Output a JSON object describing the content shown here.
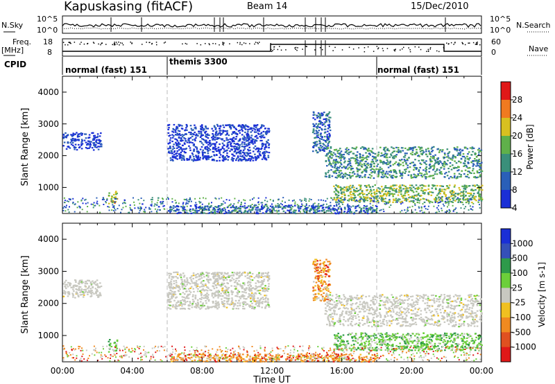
{
  "header": {
    "station": "Kapuskasing (fitACF)",
    "beam": "Beam 14",
    "date": "15/Dec/2010"
  },
  "strip": {
    "nsky_label": "N.Sky",
    "nsky_ticks": [
      "10^5",
      "10^0"
    ],
    "nsearch_label": "N.Search",
    "nsearch_ticks": [
      "10^5",
      "10^0"
    ],
    "freq_label": "Freq.",
    "freq_unit": "[MHz]",
    "freq_ticks": [
      "18",
      "8"
    ],
    "nave_label": "Nave",
    "nave_ticks": [
      "60",
      "0"
    ],
    "cpid_label": "CPID",
    "cpid_modes": [
      {
        "name": "normal (fast) 151",
        "start_h": 0,
        "end_h": 6
      },
      {
        "name": "themis 3300",
        "start_h": 6,
        "end_h": 18
      },
      {
        "name": "normal (fast) 151",
        "start_h": 18,
        "end_h": 24
      }
    ]
  },
  "colors": {
    "pw4": "#1a2fd6",
    "pw8": "#2a5fb8",
    "pw12": "#3a8f7a",
    "pw16": "#5fb04a",
    "pw20": "#d8c020",
    "pw24": "#f07a20",
    "pw28": "#e01818",
    "v1000p": "#1a2fd6",
    "v500p": "#3550b8",
    "v100p": "#2e9a4a",
    "v25p": "#6ccf3a",
    "vgs": "#c8c8c0",
    "vm25": "#f0c020",
    "vm100": "#f08a20",
    "vm500": "#e05020",
    "vm1000": "#e01818"
  },
  "chart_data": [
    {
      "type": "heatmap",
      "title": "",
      "ylabel": "Slant Range [km]",
      "xlabel": "",
      "xlim": [
        0,
        24
      ],
      "ylim": [
        180,
        4500
      ],
      "yticks": [
        "1000",
        "2000",
        "3000",
        "4000"
      ],
      "xticks": [
        "00:00",
        "04:00",
        "08:00",
        "12:00",
        "16:00",
        "20:00",
        "00:00"
      ],
      "colorbar": {
        "label": "Power [dB]",
        "ticks": [
          "28",
          "24",
          "20",
          "16",
          "12",
          "8",
          "4"
        ],
        "colors": [
          "#e01818",
          "#f07a20",
          "#d8c020",
          "#5fb04a",
          "#3a8f7a",
          "#2a5fb8",
          "#1a2fd6"
        ]
      },
      "echo_regions": [
        {
          "t0": 0.0,
          "t1": 2.2,
          "r0": 2200,
          "r1": 2750,
          "level": 1
        },
        {
          "t0": 2.6,
          "t1": 3.1,
          "r0": 500,
          "r1": 900,
          "level": 5
        },
        {
          "t0": 6.0,
          "t1": 11.8,
          "r0": 1850,
          "r1": 3000,
          "level": 1
        },
        {
          "t0": 6.0,
          "t1": 18.0,
          "r0": 200,
          "r1": 450,
          "level": 2
        },
        {
          "t0": 14.3,
          "t1": 15.3,
          "r0": 2100,
          "r1": 3400,
          "level": 2
        },
        {
          "t0": 15.0,
          "t1": 24.0,
          "r0": 1300,
          "r1": 2300,
          "level": 3
        },
        {
          "t0": 15.5,
          "t1": 24.0,
          "r0": 550,
          "r1": 1100,
          "level": 4
        }
      ]
    },
    {
      "type": "heatmap",
      "title": "",
      "ylabel": "Slant Range [km]",
      "xlabel": "Time UT",
      "xlim": [
        0,
        24
      ],
      "ylim": [
        180,
        4500
      ],
      "yticks": [
        "1000",
        "2000",
        "3000",
        "4000"
      ],
      "xticks": [
        "00:00",
        "04:00",
        "08:00",
        "12:00",
        "16:00",
        "20:00",
        "00:00"
      ],
      "colorbar": {
        "label": "Velocity [m s-1]",
        "ticks": [
          "1000",
          "500",
          "100",
          "25",
          "-25",
          "-100",
          "-500",
          "-1000"
        ],
        "colors": [
          "#1a2fd6",
          "#3550b8",
          "#2e9a4a",
          "#6ccf3a",
          "#c8c8c0",
          "#f0c020",
          "#f08a20",
          "#e05020",
          "#e01818"
        ]
      },
      "echo_regions": [
        {
          "t0": 0.0,
          "t1": 2.2,
          "r0": 2200,
          "r1": 2750,
          "vel": "ground"
        },
        {
          "t0": 2.6,
          "t1": 3.1,
          "r0": 500,
          "r1": 900,
          "vel": "positive"
        },
        {
          "t0": 6.0,
          "t1": 11.8,
          "r0": 1850,
          "r1": 3000,
          "vel": "ground"
        },
        {
          "t0": 6.0,
          "t1": 18.0,
          "r0": 200,
          "r1": 450,
          "vel": "negative"
        },
        {
          "t0": 14.3,
          "t1": 15.3,
          "r0": 2100,
          "r1": 3400,
          "vel": "negative"
        },
        {
          "t0": 15.0,
          "t1": 24.0,
          "r0": 1300,
          "r1": 2300,
          "vel": "ground"
        },
        {
          "t0": 15.5,
          "t1": 24.0,
          "r0": 550,
          "r1": 1100,
          "vel": "positive"
        }
      ]
    }
  ]
}
